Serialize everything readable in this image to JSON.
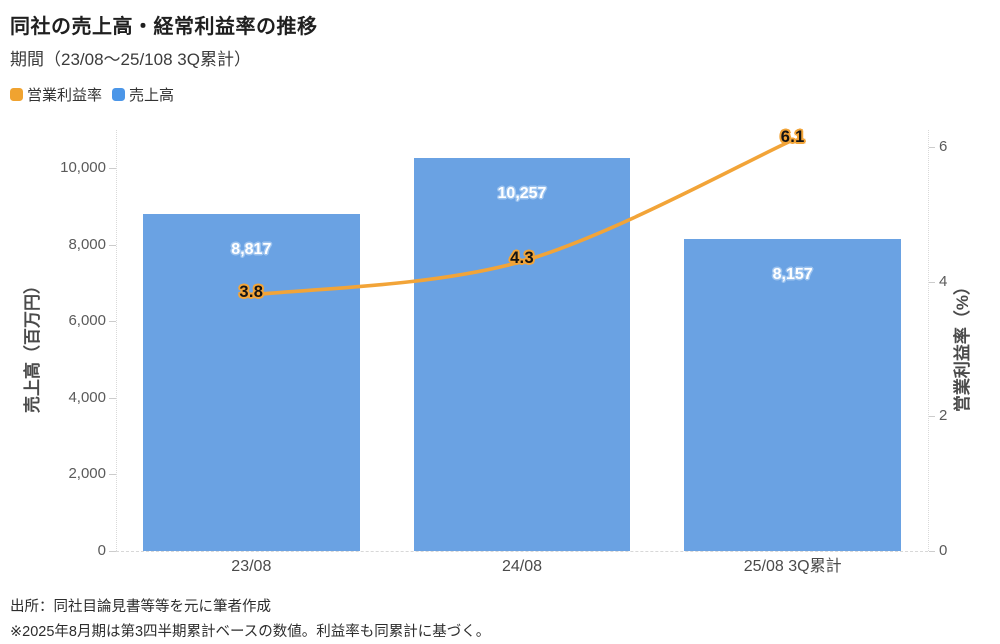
{
  "header": {
    "title": "同社の売上高・経常利益率の推移",
    "subtitle": "期間（23/08〜25/108 3Q累計）"
  },
  "legend": [
    {
      "label": "営業利益率",
      "color": "#f0a330"
    },
    {
      "label": "売上高",
      "color": "#4b96e8"
    }
  ],
  "chart_data": {
    "type": "bar+line",
    "categories": [
      "23/08",
      "24/08",
      "25/08 3Q累計"
    ],
    "series": [
      {
        "name": "売上高",
        "type": "bar",
        "axis": "left",
        "values": [
          8817,
          10257,
          8157
        ],
        "labels": [
          "8,817",
          "10,257",
          "8,157"
        ],
        "color": "#6aa2e3",
        "label_color": "#ffffff",
        "label_halo": "#9cc3ef"
      },
      {
        "name": "営業利益率",
        "type": "line",
        "axis": "right",
        "values": [
          3.8,
          4.3,
          6.1
        ],
        "labels": [
          "3.8",
          "4.3",
          "6.1"
        ],
        "color": "#f2a438",
        "label_color": "#141414",
        "label_halo": "#f2a438"
      }
    ],
    "left_axis": {
      "title": "売上高（百万円）",
      "ticks": [
        "0",
        "2,000",
        "4,000",
        "6,000",
        "8,000",
        "10,000"
      ],
      "tick_values": [
        0,
        2000,
        4000,
        6000,
        8000,
        10000
      ],
      "max": 11000
    },
    "right_axis": {
      "title": "営業利益率（%）",
      "ticks": [
        "0",
        "2",
        "4",
        "6"
      ],
      "tick_values": [
        0,
        2,
        4,
        6
      ],
      "max": 6.25
    },
    "legend_position": "top-left",
    "grid": "dotted axis lines, dashed baseline"
  },
  "footer": {
    "source": "出所：同社目論見書等等を元に筆者作成",
    "note": "※2025年8月期は第3四半期累計ベースの数値。利益率も同累計に基づく。"
  }
}
